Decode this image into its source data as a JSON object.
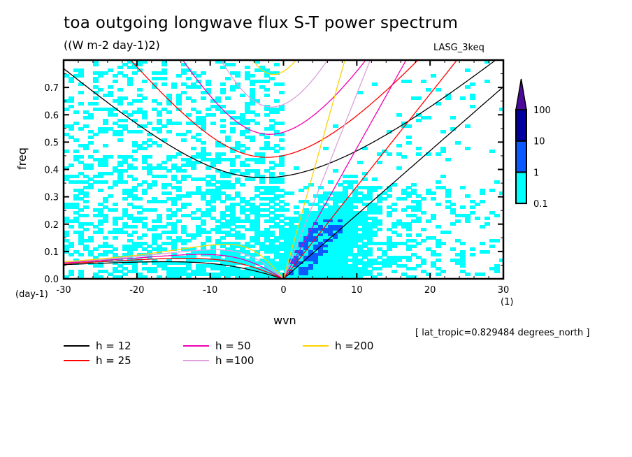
{
  "chart_data": {
    "type": "heatmap",
    "title": "toa outgoing longwave flux S-T power spectrum",
    "subtitle": "((W m-2 day-1)2)",
    "model_label": "LASG_3keq",
    "xlabel": "wvn",
    "xunit": "(1)",
    "ylabel": "freq",
    "yunit": "(day-1)",
    "xlim": [
      -30,
      30
    ],
    "ylim": [
      0,
      0.8
    ],
    "xticks": [
      -30,
      -20,
      -10,
      0,
      10,
      20,
      30
    ],
    "xtick_labels": [
      "-30",
      "-20",
      "-10",
      "0",
      "10",
      "20",
      "30"
    ],
    "yticks": [
      0,
      0.1,
      0.2,
      0.3,
      0.4,
      0.5,
      0.6,
      0.7
    ],
    "ytick_labels": [
      "0.0",
      "0.1",
      "0.2",
      "0.3",
      "0.4",
      "0.5",
      "0.6",
      "0.7"
    ],
    "annotation": "[ lat_tropic=0.829484 degrees_north ]",
    "colorbar": {
      "levels": [
        0.1,
        1,
        10,
        100
      ],
      "level_labels": [
        "0.1",
        "1",
        "10",
        "100"
      ],
      "colors": [
        "#00ffff",
        "#0a5aff",
        "#0000a0",
        "#4b0a9a"
      ],
      "extend": "max"
    },
    "spectrum_regions": [
      {
        "description": "weak power (0.1-1) widespread over westward wavenumbers, frequencies below ~0.45",
        "level": "0.1-1"
      },
      {
        "description": "power 0.1-1 concentrated along low wavenumbers |k|<15, freq < 0.35",
        "level": "0.1-1"
      },
      {
        "description": "enhanced power (1-10) along Kelvin-wave band k=1..7, freq 0.02-0.2",
        "level": "1-10"
      }
    ],
    "dispersion_curves": {
      "wave_types": [
        "Kelvin",
        "n=1 Inertio-Gravity",
        "n=1 Equatorial Rossby"
      ],
      "series": [
        {
          "name": "h = 12",
          "equivalent_depth_m": 12,
          "color": "#000000"
        },
        {
          "name": "h = 25",
          "equivalent_depth_m": 25,
          "color": "#ff0000"
        },
        {
          "name": "h = 50",
          "equivalent_depth_m": 50,
          "color": "#f000b4"
        },
        {
          "name": "h =100",
          "equivalent_depth_m": 100,
          "color": "#dca0dc"
        },
        {
          "name": "h =200",
          "equivalent_depth_m": 200,
          "color": "#ffd200"
        }
      ]
    },
    "grid": false,
    "legend_position": "bottom-left"
  }
}
